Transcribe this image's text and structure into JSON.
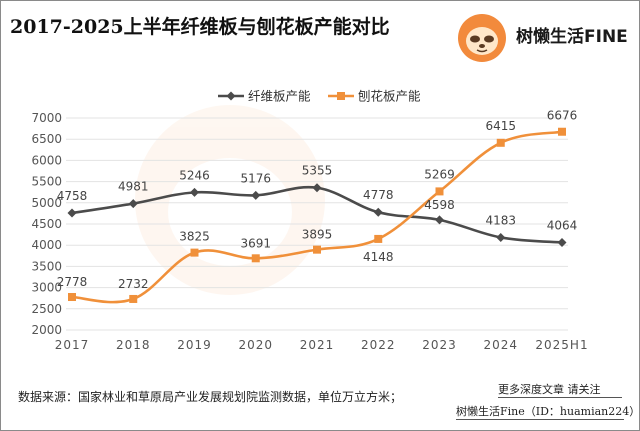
{
  "header": {
    "title": "2017-2025上半年纤维板与刨花板产能对比",
    "logo_text": "树懒生活FINE",
    "logo_icon": "sloth-face-icon"
  },
  "colors": {
    "series_fiberboard": "#4b4b4b",
    "series_particleboard": "#f0903a",
    "logo_circle": "#f28a3c",
    "grid": "#e3e3e3",
    "axis_text": "#555555"
  },
  "chart_data": {
    "type": "line",
    "title": "2017-2025上半年纤维板与刨花板产能对比",
    "categories": [
      "2017",
      "2018",
      "2019",
      "2020",
      "2021",
      "2022",
      "2023",
      "2024",
      "2025H1"
    ],
    "series": [
      {
        "name": "纤维板产能",
        "marker": "diamond",
        "values": [
          4758,
          4981,
          5246,
          5176,
          5355,
          4778,
          4598,
          4183,
          4064
        ]
      },
      {
        "name": "刨花板产能",
        "marker": "square",
        "values": [
          2778,
          2732,
          3825,
          3691,
          3895,
          4148,
          5269,
          6415,
          6676
        ]
      }
    ],
    "yticks": [
      2000,
      2500,
      3000,
      3500,
      4000,
      4500,
      5000,
      5500,
      6000,
      6500,
      7000
    ],
    "ylim": [
      2000,
      7000
    ],
    "xlabel": "",
    "ylabel": "",
    "grid": true,
    "legend_position": "top-center",
    "smooth_lines": true
  },
  "footer": {
    "source": "数据来源：国家林业和草原局产业发展规划院监测数据，单位万立方米；",
    "follow": "更多深度文章 请关注",
    "account": "树懒生活Fine（ID：huamian224）"
  }
}
